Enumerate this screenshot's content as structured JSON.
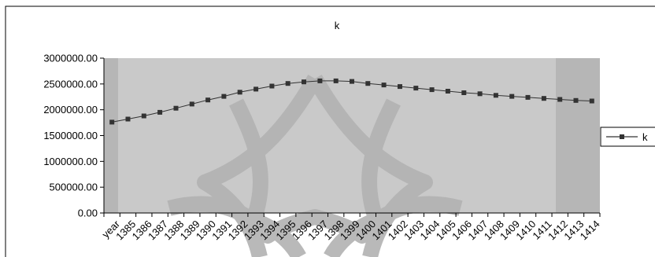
{
  "chart_data": {
    "type": "line",
    "title": "k",
    "xlabel": "",
    "ylabel": "",
    "categories": [
      "year",
      "1385",
      "1386",
      "1387",
      "1388",
      "1389",
      "1390",
      "1391",
      "1392",
      "1393",
      "1394",
      "1395",
      "1396",
      "1397",
      "1398",
      "1399",
      "1400",
      "1401",
      "1402",
      "1403",
      "1404",
      "1405",
      "1406",
      "1407",
      "1408",
      "1409",
      "1410",
      "1411",
      "1412",
      "1413",
      "1414"
    ],
    "y_ticks": [
      "0.00",
      "500000.00",
      "1000000.00",
      "1500000.00",
      "2000000.00",
      "2500000.00",
      "3000000.00"
    ],
    "ylim": [
      0,
      3000000
    ],
    "grid": false,
    "legend": "right",
    "series": [
      {
        "name": "k",
        "color": "#333333",
        "marker": "square",
        "values": [
          1760000,
          1820000,
          1880000,
          1950000,
          2030000,
          2110000,
          2190000,
          2260000,
          2340000,
          2400000,
          2460000,
          2510000,
          2540000,
          2560000,
          2560000,
          2550000,
          2510000,
          2480000,
          2450000,
          2420000,
          2390000,
          2360000,
          2330000,
          2310000,
          2280000,
          2260000,
          2240000,
          2220000,
          2200000,
          2180000,
          2170000
        ]
      }
    ]
  },
  "colors": {
    "plot_area": "#c9c9c9",
    "plot_edge": "#b6b6b6",
    "watermark": "#b2b2b2",
    "axis": "#000000"
  }
}
